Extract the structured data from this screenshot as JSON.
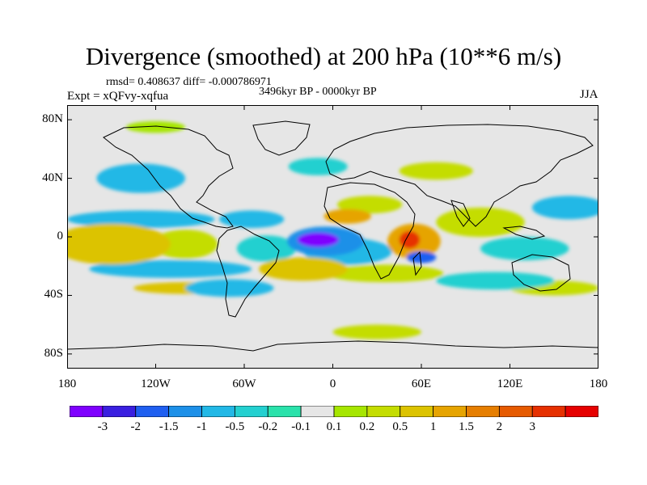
{
  "title": "Divergence (smoothed) at 200 hPa (10**6 m/s)",
  "stats": "rmsd= 0.408637 diff= -0.000786971",
  "period": "3496kyr BP - 0000kyr BP",
  "experiment": "Expt = xQFvy-xqfua",
  "season": "JJA",
  "map": {
    "projection": "cylindrical-equidistant",
    "lon_range": [
      -180,
      180
    ],
    "lat_range": [
      -90,
      90
    ],
    "x_ticks": [
      {
        "label": "180",
        "lon": -180
      },
      {
        "label": "120W",
        "lon": -120
      },
      {
        "label": "60W",
        "lon": -60
      },
      {
        "label": "0",
        "lon": 0
      },
      {
        "label": "60E",
        "lon": 60
      },
      {
        "label": "120E",
        "lon": 120
      },
      {
        "label": "180",
        "lon": 180
      }
    ],
    "y_ticks": [
      {
        "label": "80N",
        "lat": 80
      },
      {
        "label": "40N",
        "lat": 40
      },
      {
        "label": "0",
        "lat": 0
      },
      {
        "label": "40S",
        "lat": -40
      },
      {
        "label": "80S",
        "lat": -80
      }
    ],
    "background_color": "#e6e6e6",
    "field_features": [
      {
        "lon": -10,
        "lat": -2,
        "rx": 14,
        "ry": 5,
        "value": -3.2
      },
      {
        "lon": -5,
        "lat": -3,
        "rx": 26,
        "ry": 10,
        "value": -1.2
      },
      {
        "lon": 10,
        "lat": -10,
        "rx": 30,
        "ry": 9,
        "value": -0.6
      },
      {
        "lon": 52,
        "lat": -2,
        "rx": 7,
        "ry": 6,
        "value": 3.2
      },
      {
        "lon": 55,
        "lat": -3,
        "rx": 18,
        "ry": 12,
        "value": 1.2
      },
      {
        "lon": 60,
        "lat": -14,
        "rx": 10,
        "ry": 4,
        "value": -1.6
      },
      {
        "lon": 35,
        "lat": -25,
        "rx": 40,
        "ry": 6,
        "value": 0.3
      },
      {
        "lon": -20,
        "lat": -22,
        "rx": 30,
        "ry": 8,
        "value": 0.8
      },
      {
        "lon": 10,
        "lat": 14,
        "rx": 16,
        "ry": 5,
        "value": 1.2
      },
      {
        "lon": 25,
        "lat": 22,
        "rx": 22,
        "ry": 6,
        "value": 0.4
      },
      {
        "lon": -150,
        "lat": -5,
        "rx": 40,
        "ry": 14,
        "value": 0.6
      },
      {
        "lon": -100,
        "lat": -5,
        "rx": 22,
        "ry": 10,
        "value": 0.3
      },
      {
        "lon": -130,
        "lat": 12,
        "rx": 50,
        "ry": 6,
        "value": -0.5
      },
      {
        "lon": -130,
        "lat": 40,
        "rx": 30,
        "ry": 10,
        "value": -0.5
      },
      {
        "lon": -55,
        "lat": 12,
        "rx": 22,
        "ry": 6,
        "value": -0.7
      },
      {
        "lon": -45,
        "lat": -8,
        "rx": 20,
        "ry": 9,
        "value": -0.4
      },
      {
        "lon": -110,
        "lat": -22,
        "rx": 55,
        "ry": 6,
        "value": -0.5
      },
      {
        "lon": -70,
        "lat": -35,
        "rx": 30,
        "ry": 6,
        "value": -0.9
      },
      {
        "lon": -100,
        "lat": -35,
        "rx": 35,
        "ry": 4,
        "value": 0.7
      },
      {
        "lon": 100,
        "lat": 10,
        "rx": 30,
        "ry": 10,
        "value": 0.5
      },
      {
        "lon": 130,
        "lat": -8,
        "rx": 30,
        "ry": 8,
        "value": -0.4
      },
      {
        "lon": 160,
        "lat": 20,
        "rx": 25,
        "ry": 8,
        "value": -0.6
      },
      {
        "lon": 110,
        "lat": -30,
        "rx": 40,
        "ry": 6,
        "value": -0.4
      },
      {
        "lon": 150,
        "lat": -35,
        "rx": 30,
        "ry": 5,
        "value": 0.3
      },
      {
        "lon": 70,
        "lat": 45,
        "rx": 25,
        "ry": 6,
        "value": 0.3
      },
      {
        "lon": -10,
        "lat": 48,
        "rx": 20,
        "ry": 6,
        "value": -0.2
      },
      {
        "lon": 30,
        "lat": -65,
        "rx": 30,
        "ry": 5,
        "value": 0.4
      },
      {
        "lon": -120,
        "lat": 75,
        "rx": 20,
        "ry": 4,
        "value": 0.2
      }
    ]
  },
  "colorbar": {
    "colors": [
      "#7f00ff",
      "#3a1fe0",
      "#1f5ff0",
      "#1d90e8",
      "#22b8e6",
      "#23d0d0",
      "#2ae2ab",
      "#e6e6e6",
      "#a6e600",
      "#c4dd00",
      "#dcc300",
      "#e6a400",
      "#e67e00",
      "#e65a00",
      "#e63000",
      "#e60000"
    ],
    "labels": [
      "-3",
      "-2",
      "-1.5",
      "-1",
      "-0.5",
      "-0.2",
      "-0.1",
      "0.1",
      "0.2",
      "0.5",
      "1",
      "1.5",
      "2",
      "3"
    ],
    "levels": [
      -3,
      -2,
      -1.5,
      -1,
      -0.5,
      -0.2,
      -0.1,
      0.1,
      0.2,
      0.5,
      1,
      1.5,
      2,
      3
    ]
  }
}
